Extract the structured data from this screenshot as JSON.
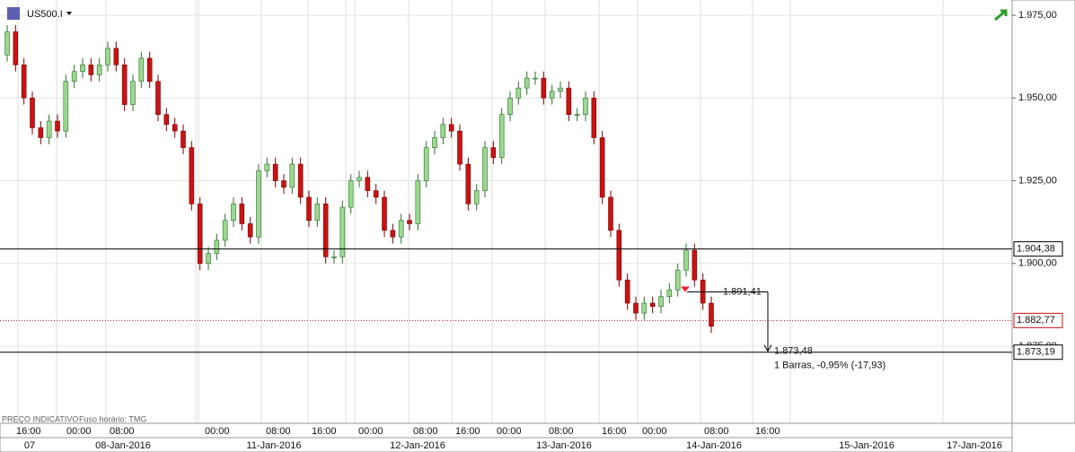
{
  "chart_data": {
    "type": "candlestick",
    "symbol": "US500.I",
    "footer_left": "PREÇO INDICATIVO",
    "footer_tz": "Fuso horário: TMG",
    "ylim": [
      1851.7,
      1979.6
    ],
    "yticks": [
      {
        "value": 1975,
        "label": "1.975,00"
      },
      {
        "value": 1950,
        "label": "1.950,00"
      },
      {
        "value": 1925,
        "label": "1.925,00"
      },
      {
        "value": 1900,
        "label": "1.900,00"
      },
      {
        "value": 1875,
        "label": "1.875,00"
      }
    ],
    "open": [
      1963,
      1970,
      1960,
      1950,
      1941,
      1938,
      1943,
      1940,
      1955,
      1958,
      1960,
      1957,
      1960,
      1965,
      1960,
      1948,
      1955,
      1962,
      1955,
      1945,
      1942,
      1940,
      1935,
      1918,
      1900,
      1903,
      1907,
      1913,
      1918,
      1912,
      1908,
      1928,
      1930,
      1925,
      1923,
      1930,
      1920,
      1913,
      1918,
      1902,
      1902,
      1917,
      1925,
      1926,
      1922,
      1920,
      1910,
      1908,
      1913,
      1912,
      1925,
      1935,
      1938,
      1942,
      1940,
      1930,
      1918,
      1922,
      1935,
      1932,
      1945,
      1950,
      1953,
      1956,
      1956,
      1950,
      1952,
      1953,
      1945,
      1945,
      1950,
      1938,
      1920,
      1910,
      1895,
      1888,
      1885,
      1888,
      1887,
      1890,
      1892,
      1898,
      1904,
      1895,
      1888
    ],
    "high": [
      1972,
      1972,
      1962,
      1952,
      1943,
      1945,
      1945,
      1957,
      1960,
      1962,
      1962,
      1962,
      1967,
      1967,
      1962,
      1957,
      1964,
      1964,
      1957,
      1947,
      1944,
      1942,
      1937,
      1920,
      1905,
      1909,
      1915,
      1920,
      1920,
      1914,
      1930,
      1932,
      1932,
      1927,
      1932,
      1932,
      1922,
      1920,
      1920,
      1904,
      1919,
      1927,
      1928,
      1928,
      1924,
      1922,
      1912,
      1915,
      1915,
      1927,
      1937,
      1940,
      1944,
      1944,
      1942,
      1932,
      1924,
      1937,
      1937,
      1947,
      1952,
      1955,
      1958,
      1958,
      1958,
      1954,
      1955,
      1955,
      1947,
      1952,
      1952,
      1940,
      1922,
      1912,
      1897,
      1890,
      1890,
      1890,
      1892,
      1894,
      1900,
      1906,
      1906,
      1897,
      1890
    ],
    "low": [
      1961,
      1958,
      1948,
      1939,
      1936,
      1936,
      1938,
      1938,
      1953,
      1956,
      1955,
      1955,
      1958,
      1958,
      1946,
      1946,
      1953,
      1953,
      1943,
      1940,
      1938,
      1933,
      1916,
      1898,
      1898,
      1901,
      1905,
      1911,
      1910,
      1906,
      1906,
      1926,
      1923,
      1921,
      1921,
      1918,
      1911,
      1911,
      1900,
      1900,
      1900,
      1915,
      1923,
      1920,
      1918,
      1908,
      1906,
      1906,
      1910,
      1910,
      1923,
      1933,
      1936,
      1938,
      1928,
      1916,
      1916,
      1920,
      1930,
      1930,
      1943,
      1948,
      1951,
      1954,
      1948,
      1948,
      1950,
      1943,
      1943,
      1943,
      1936,
      1918,
      1908,
      1893,
      1886,
      1883,
      1883,
      1885,
      1885,
      1888,
      1890,
      1896,
      1893,
      1886,
      1879
    ],
    "close": [
      1970,
      1960,
      1950,
      1941,
      1938,
      1943,
      1940,
      1955,
      1958,
      1960,
      1957,
      1960,
      1965,
      1960,
      1948,
      1955,
      1962,
      1955,
      1945,
      1942,
      1940,
      1935,
      1918,
      1900,
      1903,
      1907,
      1913,
      1918,
      1912,
      1908,
      1928,
      1930,
      1925,
      1923,
      1930,
      1920,
      1913,
      1918,
      1902,
      1902,
      1917,
      1925,
      1926,
      1922,
      1920,
      1910,
      1908,
      1913,
      1912,
      1925,
      1935,
      1938,
      1942,
      1940,
      1930,
      1918,
      1922,
      1935,
      1932,
      1945,
      1950,
      1953,
      1956,
      1956,
      1950,
      1952,
      1953,
      1945,
      1945,
      1950,
      1938,
      1920,
      1910,
      1895,
      1888,
      1885,
      1888,
      1887,
      1890,
      1892,
      1898,
      1904,
      1895,
      1888,
      1881
    ],
    "up_color": "#9bd98f",
    "down_color": "#c81414",
    "levels": [
      {
        "value": 1904.38,
        "label": "1.904,38",
        "color": "#000000"
      },
      {
        "value": 1882.77,
        "label": "1.882,77",
        "color": "#c81414"
      },
      {
        "value": 1873.19,
        "label": "1.873,19",
        "color": "#000000"
      }
    ],
    "measure": {
      "from": 1891.41,
      "from_label": "1.891,41",
      "to": 1873.48,
      "to_label": "1.873,48",
      "note": "1 Barras, -0,95% (-17,93)"
    },
    "time_labels": [
      "16:00",
      "00:00",
      "08:00",
      "00:00",
      "08:00",
      "16:00",
      "00:00",
      "08:00",
      "16:00",
      "00:00",
      "08:00",
      "16:00",
      "00:00",
      "08:00",
      "16:00"
    ],
    "date_labels": [
      "07",
      "08-Jan-2016",
      "11-Jan-2016",
      "12-Jan-2016",
      "13-Jan-2016",
      "14-Jan-2016",
      "15-Jan-2016",
      "17-Jan-2016"
    ]
  }
}
